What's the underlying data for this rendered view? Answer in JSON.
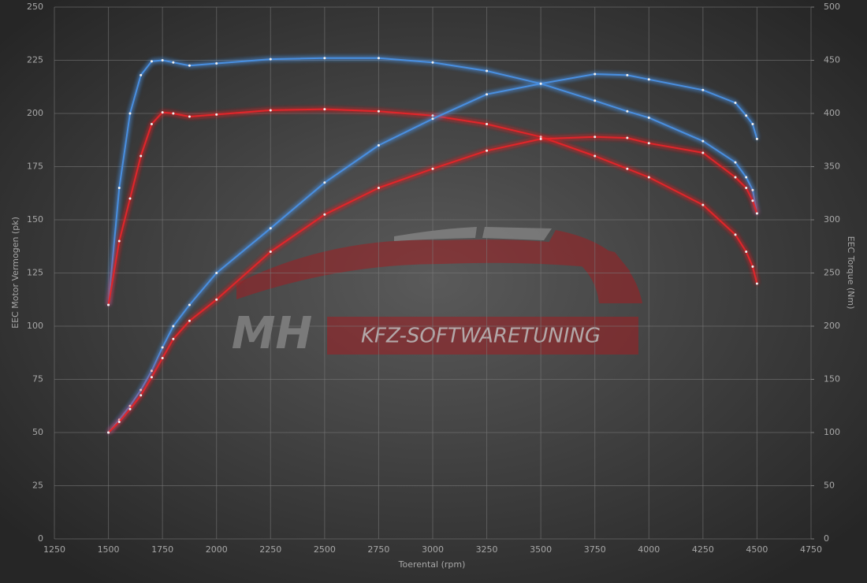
{
  "chart_data": {
    "type": "line",
    "x_label": "Toerental (rpm)",
    "y_label": "EEC Motor Vermogen (pk)",
    "y2_label": "EEC Torque (Nm)",
    "annotations": [
      "MH",
      "KFZ-SOFTWARETUNING"
    ],
    "x": [
      1500,
      1550,
      1600,
      1650,
      1700,
      1750,
      1800,
      1875,
      2000,
      2250,
      2500,
      2750,
      3000,
      3250,
      3500,
      3750,
      3900,
      4000,
      4250,
      4400,
      4450,
      4480,
      4500
    ],
    "series": [
      {
        "color": "#4a8fe0",
        "values": [
          110,
          165,
          200,
          218,
          224.5,
          225,
          224,
          222.5,
          223.5,
          225.5,
          226,
          226,
          224,
          220,
          214,
          206,
          201,
          198,
          187,
          177,
          170,
          164,
          153
        ]
      },
      {
        "color": "#e0262a",
        "values": [
          110,
          140,
          160,
          180,
          195,
          200.5,
          200,
          198.5,
          199.5,
          201.5,
          202,
          201,
          199,
          195,
          189,
          180,
          174,
          170,
          157,
          143,
          135,
          128,
          120
        ]
      },
      {
        "color": "#4a8fe0",
        "axis": "y2",
        "values": [
          100,
          112,
          125,
          140,
          158,
          180,
          200,
          220,
          250,
          292,
          335,
          370,
          395,
          418,
          428,
          437,
          436,
          432,
          422,
          410,
          398,
          390,
          376
        ]
      },
      {
        "color": "#e0262a",
        "axis": "y2",
        "values": [
          100,
          110,
          122,
          135,
          152,
          170,
          188,
          205,
          225,
          270,
          305,
          330,
          348,
          365,
          376,
          378,
          377,
          372,
          363,
          340,
          330,
          318,
          306
        ]
      }
    ],
    "xlim": [
      1250,
      4750
    ],
    "xticks": [
      1250,
      1500,
      1750,
      2000,
      2250,
      2500,
      2750,
      3000,
      3250,
      3500,
      3750,
      4000,
      4250,
      4500,
      4750
    ],
    "ylim": [
      0,
      250
    ],
    "yticks": [
      0,
      25,
      50,
      75,
      100,
      125,
      150,
      175,
      200,
      225,
      250
    ],
    "y2lim": [
      0,
      500
    ],
    "y2ticks": [
      0,
      50,
      100,
      150,
      200,
      250,
      300,
      350,
      400,
      450,
      500
    ],
    "grid": true
  }
}
